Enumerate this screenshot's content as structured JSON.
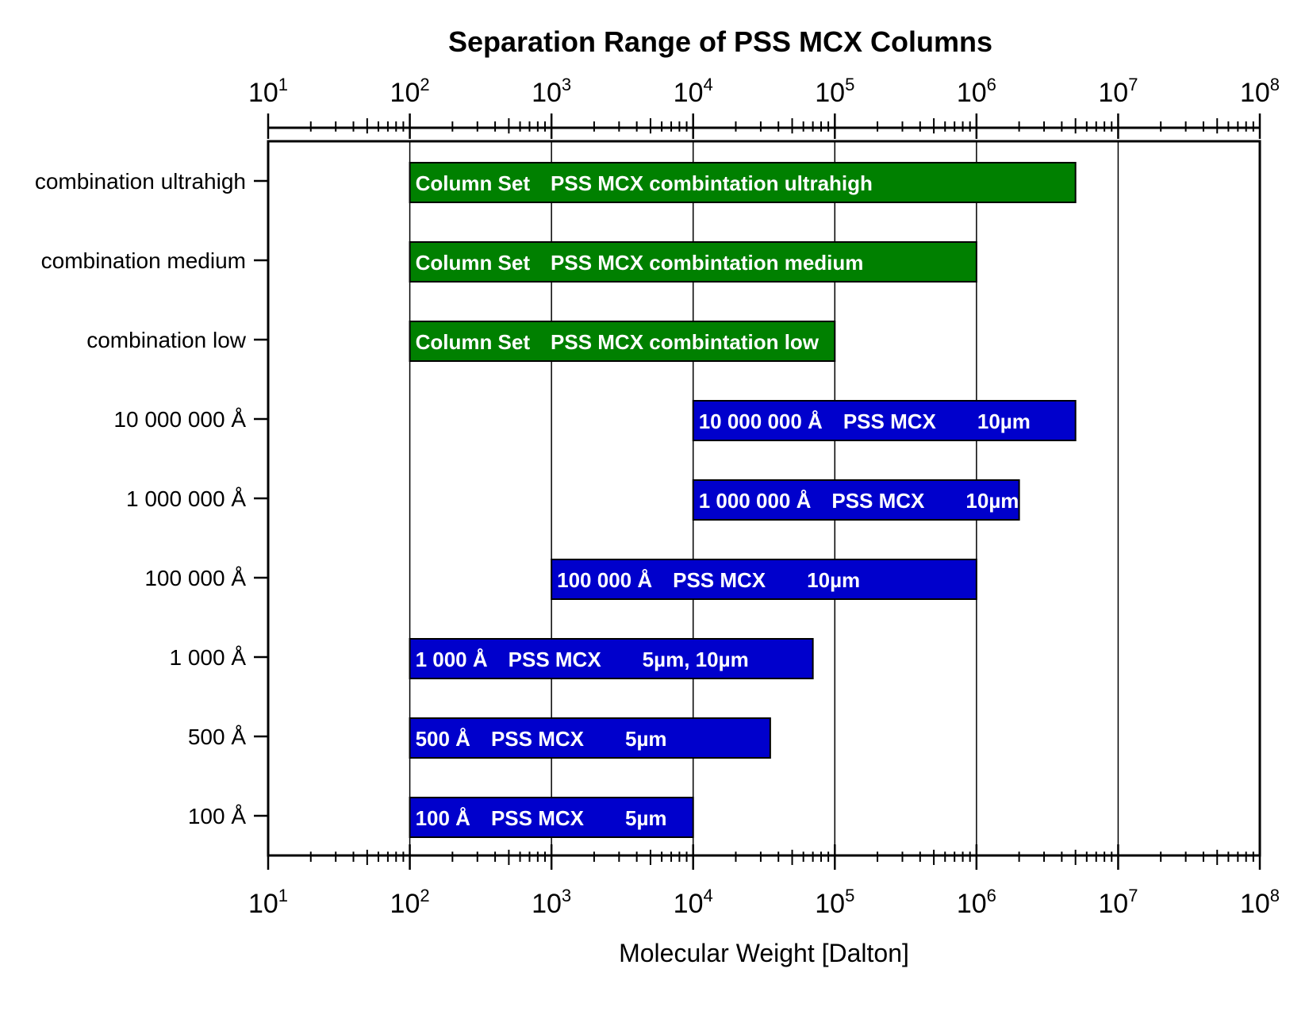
{
  "chart_data": {
    "type": "bar",
    "orientation": "horizontal",
    "title": "Separation Range of PSS MCX Columns",
    "xlabel": "Molecular Weight [Dalton]",
    "ylabel": "",
    "x_scale": "log",
    "xlim": [
      10,
      100000000
    ],
    "x_ticks": [
      {
        "base": "10",
        "exp": "1"
      },
      {
        "base": "10",
        "exp": "2"
      },
      {
        "base": "10",
        "exp": "3"
      },
      {
        "base": "10",
        "exp": "4"
      },
      {
        "base": "10",
        "exp": "5"
      },
      {
        "base": "10",
        "exp": "6"
      },
      {
        "base": "10",
        "exp": "7"
      },
      {
        "base": "10",
        "exp": "8"
      }
    ],
    "grid": "vertical at decades",
    "colors": {
      "combination": "#008000",
      "single": "#0000cc"
    },
    "categories": [
      "combination ultrahigh",
      "combination medium",
      "combination low",
      "10 000 000 Å",
      "1 000 000 Å",
      "100 000 Å",
      "1 000 Å",
      "500 Å",
      "100 Å"
    ],
    "bars": [
      {
        "category": "combination ultrahigh",
        "start": 100,
        "end": 5000000,
        "color": "#008000",
        "labels": [
          "Column Set",
          "PSS MCX combintation ultrahigh"
        ]
      },
      {
        "category": "combination medium",
        "start": 100,
        "end": 1000000,
        "color": "#008000",
        "labels": [
          "Column Set",
          "PSS MCX combintation medium"
        ]
      },
      {
        "category": "combination low",
        "start": 100,
        "end": 100000,
        "color": "#008000",
        "labels": [
          "Column Set",
          "PSS MCX combintation low"
        ]
      },
      {
        "category": "10 000 000 Å",
        "start": 10000,
        "end": 5000000,
        "color": "#0000cc",
        "labels": [
          "10 000 000 Å",
          "PSS MCX",
          "10µm"
        ]
      },
      {
        "category": "1 000 000 Å",
        "start": 10000,
        "end": 2000000,
        "color": "#0000cc",
        "labels": [
          "1 000 000 Å",
          "PSS MCX",
          "10µm"
        ]
      },
      {
        "category": "100 000 Å",
        "start": 1000,
        "end": 1000000,
        "color": "#0000cc",
        "labels": [
          "100 000 Å",
          "PSS MCX",
          "10µm"
        ]
      },
      {
        "category": "1 000 Å",
        "start": 100,
        "end": 70000,
        "color": "#0000cc",
        "labels": [
          "1 000 Å",
          "PSS MCX",
          "5µm, 10µm"
        ]
      },
      {
        "category": "500 Å",
        "start": 100,
        "end": 35000,
        "color": "#0000cc",
        "labels": [
          "500 Å",
          "PSS MCX",
          "5µm"
        ]
      },
      {
        "category": "100 Å",
        "start": 100,
        "end": 10000,
        "color": "#0000cc",
        "labels": [
          "100 Å",
          "PSS MCX",
          "5µm"
        ]
      }
    ]
  }
}
